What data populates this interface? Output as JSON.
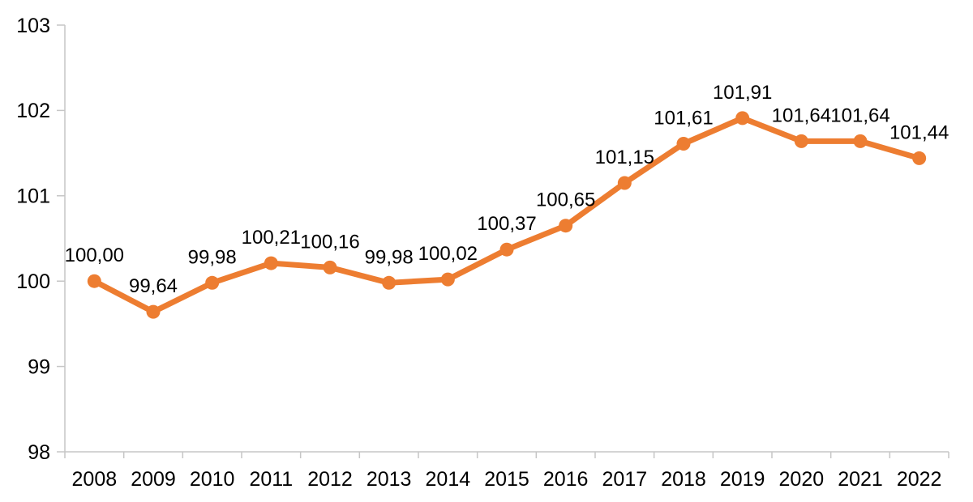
{
  "chart_data": {
    "type": "line",
    "title": "",
    "xlabel": "",
    "ylabel": "",
    "legend": "none",
    "grid": false,
    "categories": [
      "2008",
      "2009",
      "2010",
      "2011",
      "2012",
      "2013",
      "2014",
      "2015",
      "2016",
      "2017",
      "2018",
      "2019",
      "2020",
      "2021",
      "2022"
    ],
    "series": [
      {
        "name": "index-series",
        "values": [
          100.0,
          99.64,
          99.98,
          100.21,
          100.16,
          99.98,
          100.02,
          100.37,
          100.65,
          101.15,
          101.61,
          101.91,
          101.64,
          101.64,
          101.44
        ],
        "point_labels": [
          "100,00",
          "99,64",
          "99,98",
          "100,21",
          "100,16",
          "99,98",
          "100,02",
          "100,37",
          "100,65",
          "101,15",
          "101,61",
          "101,91",
          "101,64",
          "101,64",
          "101,44"
        ]
      }
    ],
    "ylim": [
      98,
      103
    ],
    "y_ticks": [
      98,
      99,
      100,
      101,
      102,
      103
    ],
    "y_tick_labels": [
      "98",
      "99",
      "100",
      "101",
      "102",
      "103"
    ],
    "colors": {
      "line": "#ED7D31",
      "marker": "#ED7D31",
      "axis": "#C6C6C6",
      "tick": "#C6C6C6",
      "text": "#000000",
      "background": "#FFFFFF"
    }
  }
}
